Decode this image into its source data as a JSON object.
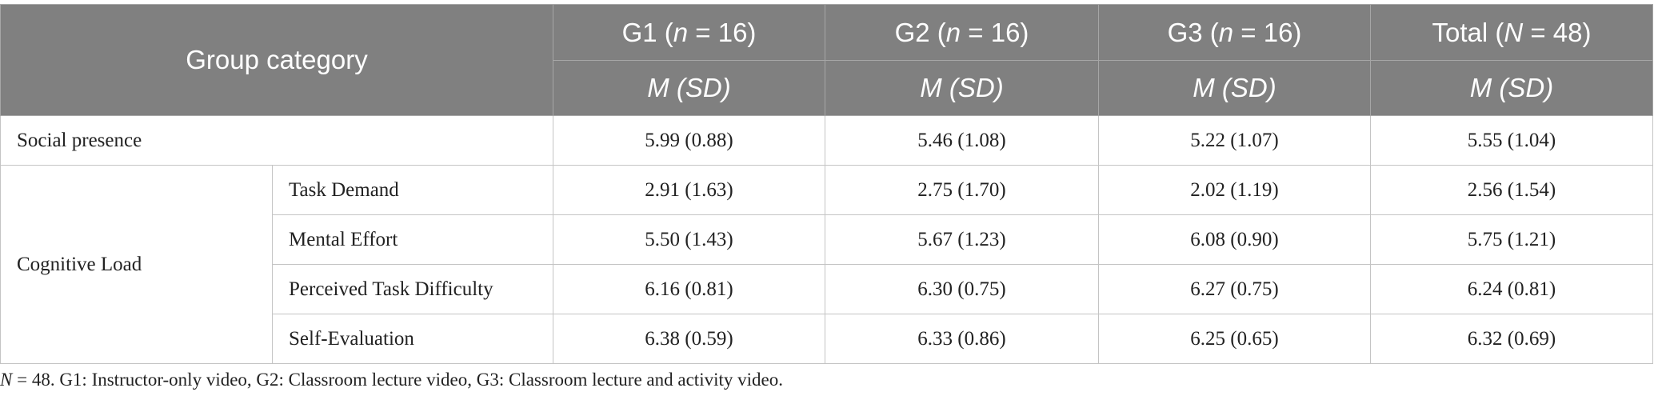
{
  "table": {
    "header": {
      "category": "Group category",
      "groups": [
        [
          "G1 (",
          "n",
          " = 16)"
        ],
        [
          "G2 (",
          "n",
          " = 16)"
        ],
        [
          "G3 (",
          "n",
          " = 16)"
        ],
        [
          "Total (",
          "N",
          " = 48)"
        ]
      ],
      "stat": "M (SD)"
    },
    "social": {
      "label": "Social presence",
      "cells": [
        "5.99 (0.88)",
        "5.46 (1.08)",
        "5.22 (1.07)",
        "5.55 (1.04)"
      ]
    },
    "cognitive": {
      "label": "Cognitive Load",
      "items": [
        {
          "label": "Task Demand",
          "cells": [
            "2.91 (1.63)",
            "2.75 (1.70)",
            "2.02 (1.19)",
            "2.56 (1.54)"
          ]
        },
        {
          "label": "Mental Effort",
          "cells": [
            "5.50 (1.43)",
            "5.67 (1.23)",
            "6.08 (0.90)",
            "5.75 (1.21)"
          ]
        },
        {
          "label": "Perceived Task Difficulty",
          "cells": [
            "6.16 (0.81)",
            "6.30 (0.75)",
            "6.27 (0.75)",
            "6.24 (0.81)"
          ]
        },
        {
          "label": "Self-Evaluation",
          "cells": [
            "6.38 (0.59)",
            "6.33 (0.86)",
            "6.25 (0.65)",
            "6.32 (0.69)"
          ]
        }
      ]
    }
  },
  "note": [
    "N",
    " = 48. G1: Instructor-only video, G2: Classroom lecture video, G3: Classroom lecture and activity video."
  ]
}
